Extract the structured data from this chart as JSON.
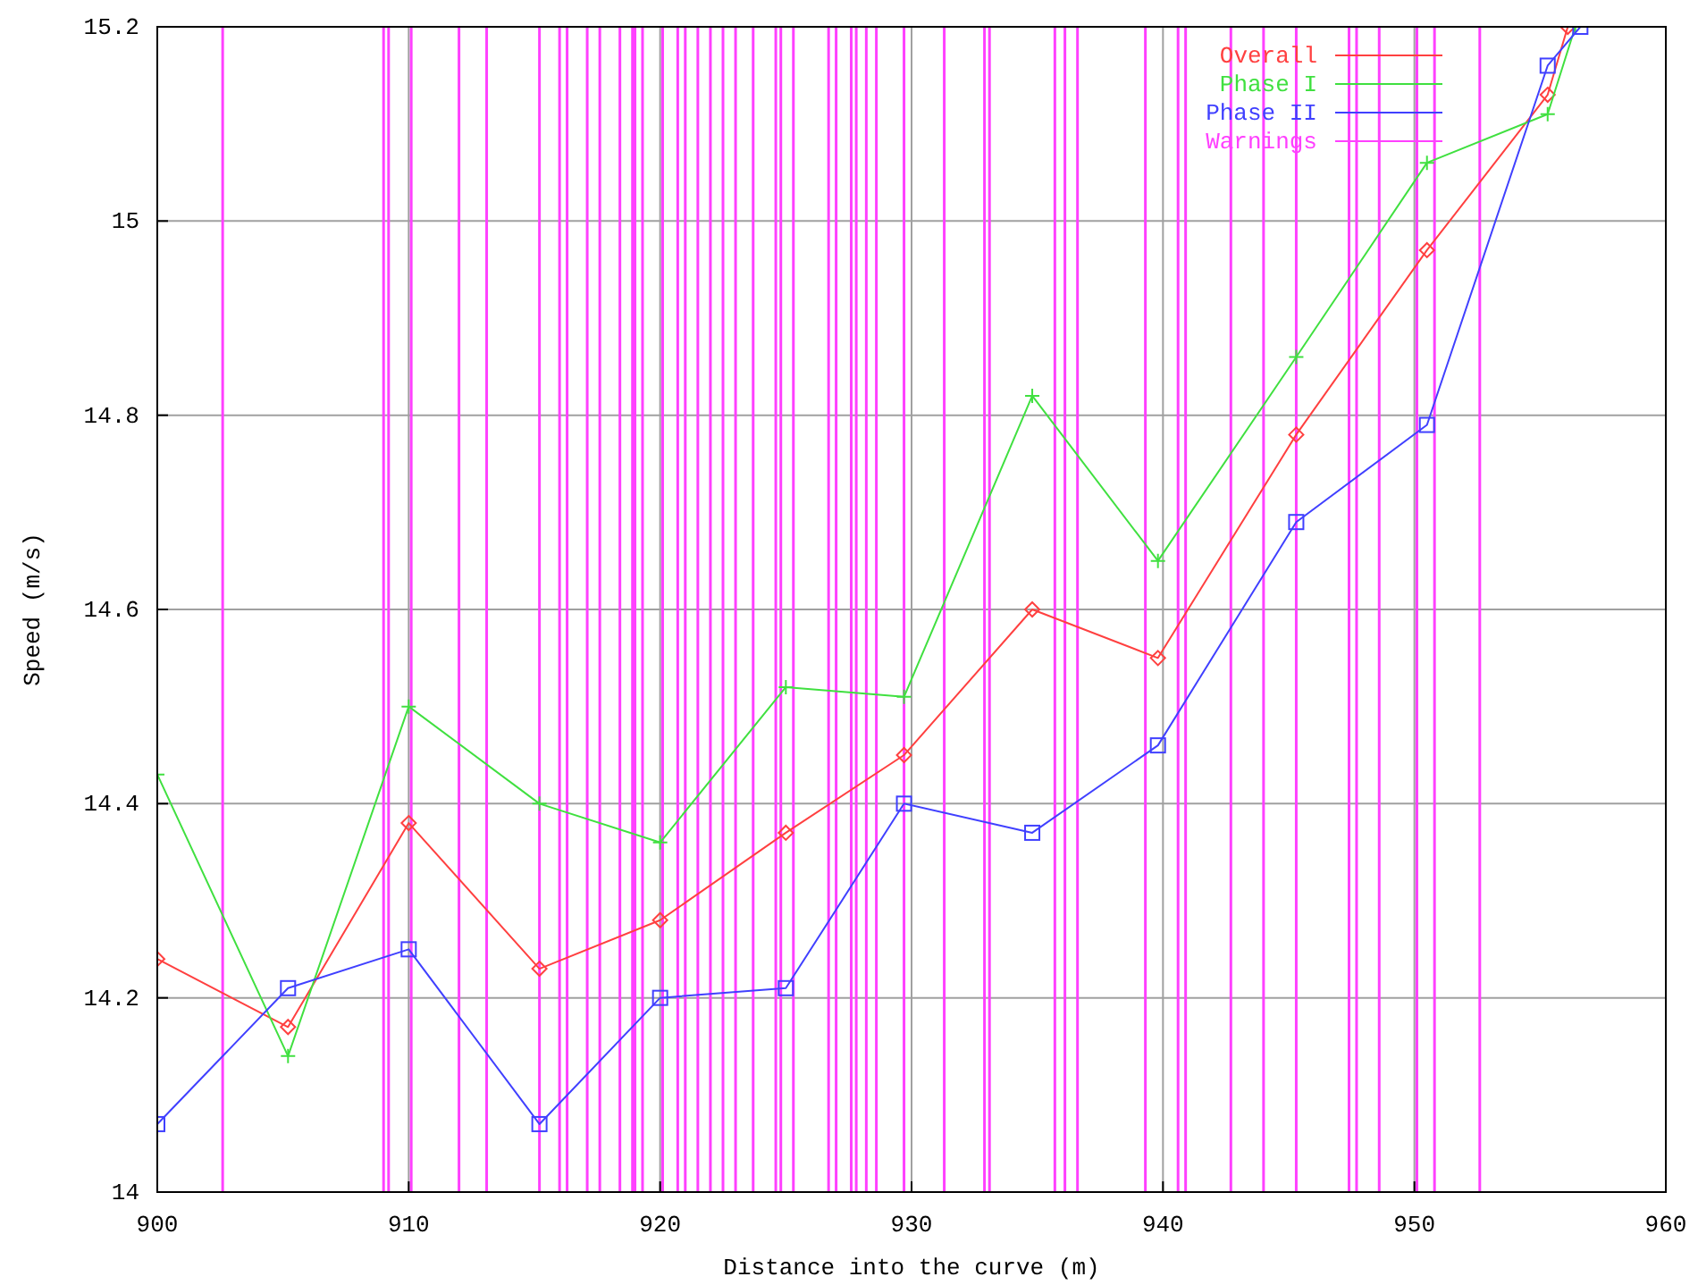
{
  "chart_data": {
    "type": "line",
    "xlabel": "Distance into the curve (m)",
    "ylabel": "Speed (m/s)",
    "xlim": [
      900,
      960
    ],
    "xticks": [
      900,
      910,
      920,
      930,
      940,
      950,
      960
    ],
    "ylim": [
      14,
      15.2
    ],
    "yticks": [
      14,
      14.2,
      14.4,
      14.6,
      14.8,
      15,
      15.2
    ],
    "grid": true,
    "legend": "top right",
    "series": [
      {
        "name": "Overall",
        "color": "#ff4040",
        "marker": "diamond",
        "x": [
          900,
          905.2,
          910,
          915.2,
          920,
          925,
          929.7,
          934.8,
          939.8,
          945.3,
          950.5,
          955.3,
          956.1
        ],
        "values": [
          14.24,
          14.17,
          14.38,
          14.23,
          14.28,
          14.37,
          14.45,
          14.6,
          14.55,
          14.78,
          14.97,
          15.13,
          15.2
        ]
      },
      {
        "name": "Phase I",
        "color": "#40e040",
        "marker": "cross",
        "x": [
          900,
          905.2,
          910,
          915.2,
          920,
          925,
          929.7,
          934.8,
          939.8,
          945.3,
          950.5,
          955.3,
          956.4
        ],
        "values": [
          14.43,
          14.14,
          14.5,
          14.4,
          14.36,
          14.52,
          14.51,
          14.82,
          14.65,
          14.86,
          15.06,
          15.11,
          15.2
        ]
      },
      {
        "name": "Phase II",
        "color": "#4040ff",
        "marker": "square",
        "x": [
          900,
          905.2,
          910,
          915.2,
          920,
          925,
          929.7,
          934.8,
          939.8,
          945.3,
          950.5,
          955.3,
          956.6
        ],
        "values": [
          14.07,
          14.21,
          14.25,
          14.07,
          14.2,
          14.21,
          14.4,
          14.37,
          14.46,
          14.69,
          14.79,
          15.16,
          15.2
        ]
      }
    ],
    "ref_lines": [
      {
        "axis": "x",
        "value": 902.6,
        "label": "Warnings",
        "color": "#ff40ff"
      },
      {
        "axis": "x",
        "value": 909,
        "color": "#ff40ff"
      },
      {
        "axis": "x",
        "value": 909.2,
        "color": "#ff40ff"
      },
      {
        "axis": "x",
        "value": 910.1,
        "color": "#ff40ff"
      },
      {
        "axis": "x",
        "value": 912,
        "color": "#ff40ff"
      },
      {
        "axis": "x",
        "value": 913.1,
        "color": "#ff40ff"
      },
      {
        "axis": "x",
        "value": 915.2,
        "color": "#ff40ff"
      },
      {
        "axis": "x",
        "value": 916,
        "color": "#ff40ff"
      },
      {
        "axis": "x",
        "value": 916.3,
        "color": "#ff40ff"
      },
      {
        "axis": "x",
        "value": 917.1,
        "color": "#ff40ff"
      },
      {
        "axis": "x",
        "value": 917.6,
        "color": "#ff40ff"
      },
      {
        "axis": "x",
        "value": 918.4,
        "color": "#ff40ff"
      },
      {
        "axis": "x",
        "value": 918.9,
        "color": "#ff40ff"
      },
      {
        "axis": "x",
        "value": 919,
        "color": "#ff40ff"
      },
      {
        "axis": "x",
        "value": 919.3,
        "color": "#ff40ff"
      },
      {
        "axis": "x",
        "value": 920.1,
        "color": "#ff40ff"
      },
      {
        "axis": "x",
        "value": 920.7,
        "color": "#ff40ff"
      },
      {
        "axis": "x",
        "value": 921,
        "color": "#ff40ff"
      },
      {
        "axis": "x",
        "value": 921.5,
        "color": "#ff40ff"
      },
      {
        "axis": "x",
        "value": 922,
        "color": "#ff40ff"
      },
      {
        "axis": "x",
        "value": 922.5,
        "color": "#ff40ff"
      },
      {
        "axis": "x",
        "value": 923,
        "color": "#ff40ff"
      },
      {
        "axis": "x",
        "value": 923.7,
        "color": "#ff40ff"
      },
      {
        "axis": "x",
        "value": 924.6,
        "color": "#ff40ff"
      },
      {
        "axis": "x",
        "value": 924.8,
        "color": "#ff40ff"
      },
      {
        "axis": "x",
        "value": 925.3,
        "color": "#ff40ff"
      },
      {
        "axis": "x",
        "value": 926.7,
        "color": "#ff40ff"
      },
      {
        "axis": "x",
        "value": 927,
        "color": "#ff40ff"
      },
      {
        "axis": "x",
        "value": 927.6,
        "color": "#ff40ff"
      },
      {
        "axis": "x",
        "value": 927.8,
        "color": "#ff40ff"
      },
      {
        "axis": "x",
        "value": 928.2,
        "color": "#ff40ff"
      },
      {
        "axis": "x",
        "value": 928.6,
        "color": "#ff40ff"
      },
      {
        "axis": "x",
        "value": 929.7,
        "color": "#ff40ff"
      },
      {
        "axis": "x",
        "value": 931.3,
        "color": "#ff40ff"
      },
      {
        "axis": "x",
        "value": 932.9,
        "color": "#ff40ff"
      },
      {
        "axis": "x",
        "value": 933.1,
        "color": "#ff40ff"
      },
      {
        "axis": "x",
        "value": 935.7,
        "color": "#ff40ff"
      },
      {
        "axis": "x",
        "value": 936.1,
        "color": "#ff40ff"
      },
      {
        "axis": "x",
        "value": 936.6,
        "color": "#ff40ff"
      },
      {
        "axis": "x",
        "value": 939.3,
        "color": "#ff40ff"
      },
      {
        "axis": "x",
        "value": 940.6,
        "color": "#ff40ff"
      },
      {
        "axis": "x",
        "value": 940.9,
        "color": "#ff40ff"
      },
      {
        "axis": "x",
        "value": 942.7,
        "color": "#ff40ff"
      },
      {
        "axis": "x",
        "value": 944,
        "color": "#ff40ff"
      },
      {
        "axis": "x",
        "value": 945.3,
        "color": "#ff40ff"
      },
      {
        "axis": "x",
        "value": 947.4,
        "color": "#ff40ff"
      },
      {
        "axis": "x",
        "value": 947.7,
        "color": "#ff40ff"
      },
      {
        "axis": "x",
        "value": 948.6,
        "color": "#ff40ff"
      },
      {
        "axis": "x",
        "value": 950.1,
        "color": "#ff40ff"
      },
      {
        "axis": "x",
        "value": 950.8,
        "color": "#ff40ff"
      },
      {
        "axis": "x",
        "value": 952.6,
        "color": "#ff40ff"
      }
    ]
  }
}
